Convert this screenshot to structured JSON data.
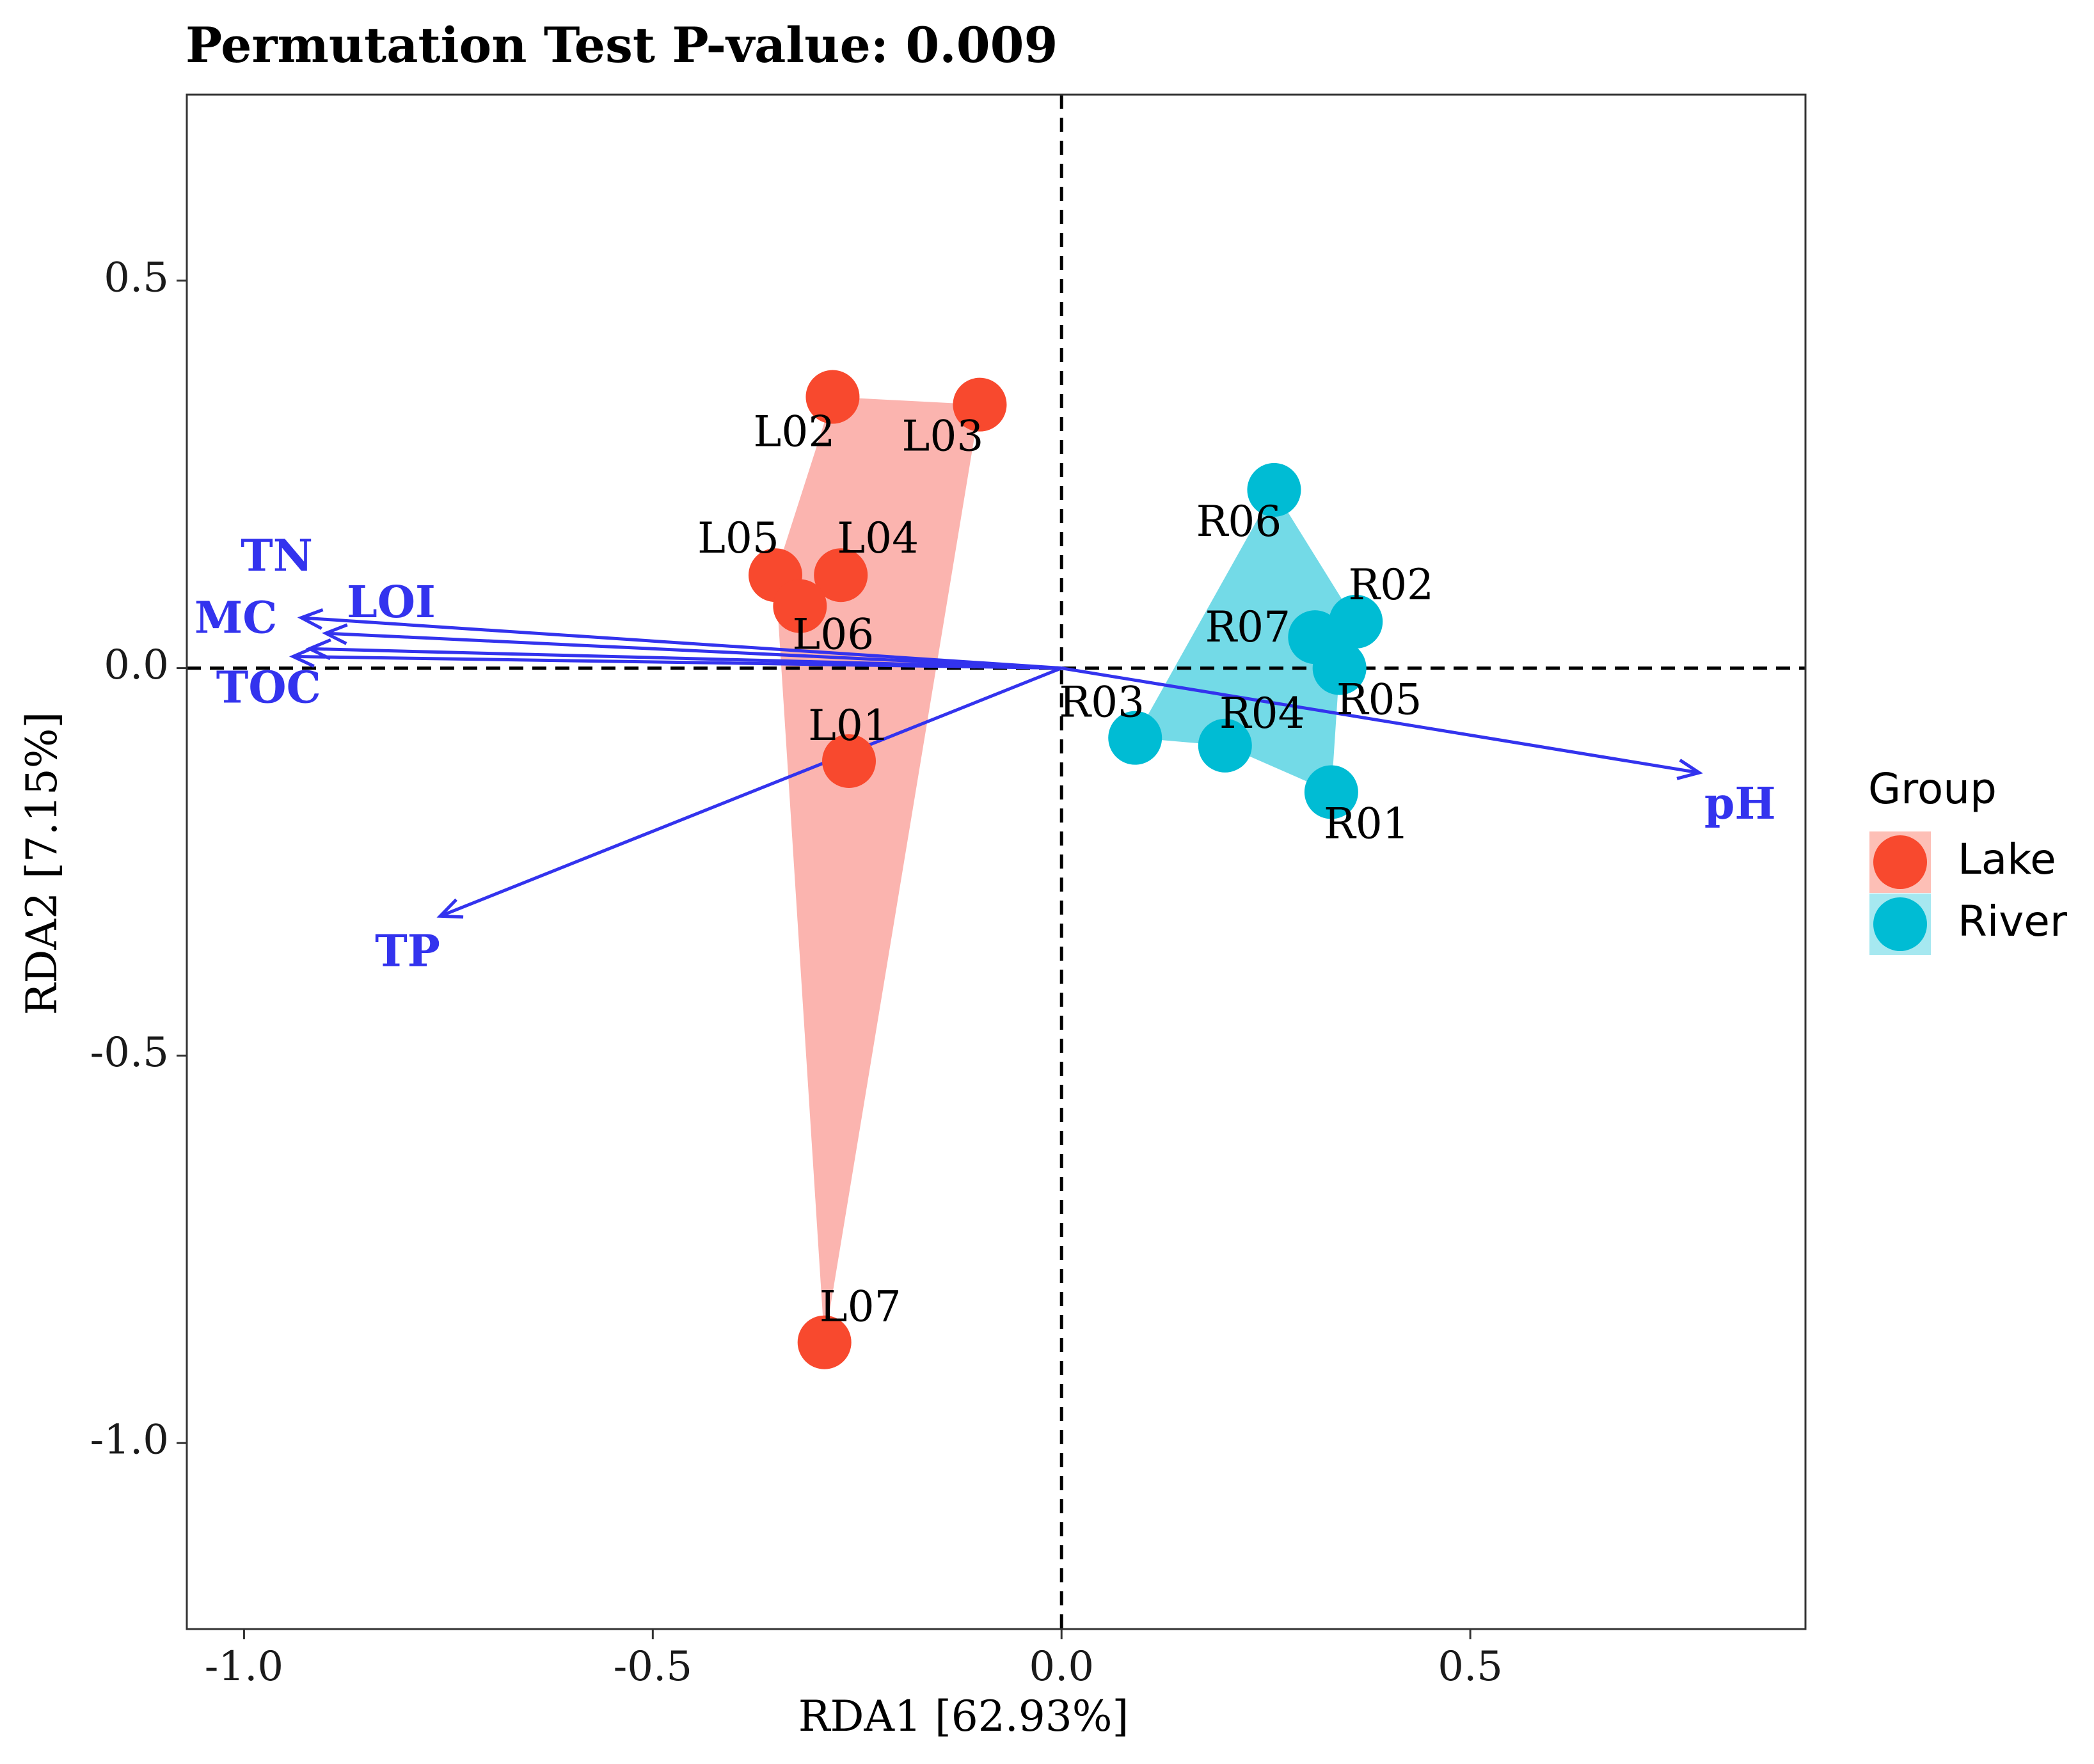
{
  "chart_data": {
    "type": "scatter",
    "title": "Permutation Test P-value: 0.009",
    "xlabel": "RDA1 [62.93%]",
    "ylabel": "RDA2 [7.15%]",
    "xlim": [
      -1.07,
      0.91
    ],
    "ylim": [
      -1.24,
      0.74
    ],
    "xticks": [
      -1.0,
      -0.5,
      0.0,
      0.5
    ],
    "xtick_labels": [
      "-1.0",
      "-0.5",
      "0.0",
      "0.5"
    ],
    "yticks": [
      0.5,
      0.0,
      -0.5,
      -1.0
    ],
    "ytick_labels": [
      "0.5",
      "0.0",
      "-0.5",
      "-1.0"
    ],
    "grid": false,
    "reference_lines": {
      "x": 0,
      "y": 0,
      "style": "dashed"
    },
    "legend": {
      "title": "Group",
      "placement": "right",
      "entries": [
        {
          "name": "Lake",
          "color": "#F8492E"
        },
        {
          "name": "River",
          "color": "#00BCD4"
        }
      ]
    },
    "series": [
      {
        "name": "Lake",
        "color": "#F8492E",
        "hull_color": "#F8766D",
        "points": [
          {
            "label": "L01",
            "x": -0.26,
            "y": -0.12
          },
          {
            "label": "L02",
            "x": -0.28,
            "y": 0.35
          },
          {
            "label": "L03",
            "x": -0.1,
            "y": 0.34
          },
          {
            "label": "L04",
            "x": -0.27,
            "y": 0.12
          },
          {
            "label": "L05",
            "x": -0.35,
            "y": 0.12
          },
          {
            "label": "L06",
            "x": -0.32,
            "y": 0.08
          },
          {
            "label": "L07",
            "x": -0.29,
            "y": -0.87
          }
        ],
        "hull_order": [
          "L02",
          "L03",
          "L07",
          "L05"
        ]
      },
      {
        "name": "River",
        "color": "#00BCD4",
        "hull_color": "#00BCD4",
        "points": [
          {
            "label": "R01",
            "x": 0.33,
            "y": -0.16
          },
          {
            "label": "R02",
            "x": 0.36,
            "y": 0.06
          },
          {
            "label": "R03",
            "x": 0.09,
            "y": -0.09
          },
          {
            "label": "R04",
            "x": 0.2,
            "y": -0.1
          },
          {
            "label": "R05",
            "x": 0.34,
            "y": 0.0
          },
          {
            "label": "R06",
            "x": 0.26,
            "y": 0.23
          },
          {
            "label": "R07",
            "x": 0.31,
            "y": 0.04
          }
        ],
        "hull_order": [
          "R06",
          "R02",
          "R05",
          "R01",
          "R04",
          "R03"
        ]
      }
    ],
    "env_vectors": {
      "color": "#3333EE",
      "arrows": [
        {
          "name": "TN",
          "x": -0.93,
          "y": 0.065,
          "label_x": -0.96,
          "label_y": 0.14
        },
        {
          "name": "LOI",
          "x": -0.9,
          "y": 0.045,
          "label_x": -0.82,
          "label_y": 0.08
        },
        {
          "name": "MC",
          "x": -0.92,
          "y": 0.025,
          "label_x": -1.01,
          "label_y": 0.06
        },
        {
          "name": "TOC",
          "x": -0.94,
          "y": 0.015,
          "label_x": -0.97,
          "label_y": -0.03
        },
        {
          "name": "TP",
          "x": -0.76,
          "y": -0.32,
          "label_x": -0.8,
          "label_y": -0.37
        },
        {
          "name": "pH",
          "x": 0.78,
          "y": -0.135,
          "label_x": 0.83,
          "label_y": -0.18
        }
      ]
    }
  }
}
